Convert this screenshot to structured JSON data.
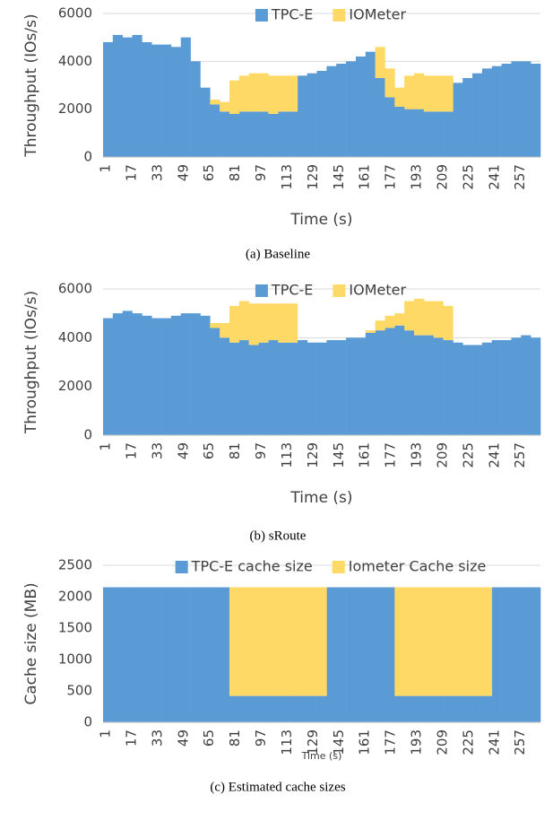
{
  "chart_data": [
    {
      "type": "bar",
      "stacked": true,
      "y_label": "Throughput (IOs/s)",
      "x_label": "Time (s)",
      "caption": "(a)  Baseline",
      "legend": "top",
      "grid": true,
      "x": [
        1,
        7,
        13,
        19,
        25,
        31,
        37,
        43,
        49,
        55,
        61,
        67,
        73,
        79,
        85,
        91,
        97,
        103,
        109,
        115,
        121,
        127,
        133,
        139,
        145,
        151,
        157,
        163,
        169,
        175,
        181,
        187,
        193,
        199,
        205,
        211,
        217,
        223,
        229,
        235,
        241,
        247,
        253,
        259,
        265
      ],
      "xlim": [
        1,
        271
      ],
      "xticks": [
        1,
        17,
        33,
        49,
        65,
        81,
        97,
        113,
        129,
        145,
        161,
        177,
        193,
        209,
        225,
        241,
        257
      ],
      "ylim": [
        0,
        6000
      ],
      "yticks": [
        0,
        2000,
        4000,
        6000
      ],
      "series": [
        {
          "name": "TPC-E",
          "color": "#5b9bd5",
          "values": [
            4800,
            5100,
            5000,
            5100,
            4800,
            4700,
            4700,
            4600,
            5000,
            4000,
            2900,
            2200,
            1900,
            1800,
            1900,
            1900,
            1900,
            1800,
            1900,
            1900,
            3400,
            3500,
            3600,
            3800,
            3900,
            4000,
            4200,
            4400,
            3300,
            2500,
            2100,
            2000,
            2000,
            1900,
            1900,
            1900,
            3100,
            3300,
            3500,
            3700,
            3800,
            3900,
            4000,
            4000,
            3900
          ]
        },
        {
          "name": "IOMeter",
          "color": "#ffd966",
          "values": [
            0,
            0,
            0,
            0,
            0,
            0,
            0,
            0,
            0,
            0,
            0,
            200,
            400,
            1400,
            1500,
            1600,
            1600,
            1600,
            1500,
            1500,
            0,
            0,
            0,
            0,
            0,
            0,
            0,
            0,
            1300,
            1200,
            800,
            1400,
            1500,
            1500,
            1500,
            1500,
            0,
            0,
            0,
            0,
            0,
            0,
            0,
            0,
            0
          ]
        }
      ]
    },
    {
      "type": "bar",
      "stacked": true,
      "y_label": "Throughput (IOs/s)",
      "x_label": "Time (s)",
      "caption": "(b)  sRoute",
      "legend": "top",
      "grid": true,
      "x": [
        1,
        7,
        13,
        19,
        25,
        31,
        37,
        43,
        49,
        55,
        61,
        67,
        73,
        79,
        85,
        91,
        97,
        103,
        109,
        115,
        121,
        127,
        133,
        139,
        145,
        151,
        157,
        163,
        169,
        175,
        181,
        187,
        193,
        199,
        205,
        211,
        217,
        223,
        229,
        235,
        241,
        247,
        253,
        259,
        265
      ],
      "xlim": [
        1,
        271
      ],
      "xticks": [
        1,
        17,
        33,
        49,
        65,
        81,
        97,
        113,
        129,
        145,
        161,
        177,
        193,
        209,
        225,
        241,
        257
      ],
      "ylim": [
        0,
        6000
      ],
      "yticks": [
        0,
        2000,
        4000,
        6000
      ],
      "series": [
        {
          "name": "TPC-E",
          "color": "#5b9bd5",
          "values": [
            4800,
            5000,
            5100,
            5000,
            4900,
            4800,
            4800,
            4900,
            5000,
            5000,
            4900,
            4400,
            4000,
            3800,
            3900,
            3700,
            3800,
            3900,
            3800,
            3800,
            3900,
            3800,
            3800,
            3900,
            3900,
            4000,
            4000,
            4200,
            4300,
            4400,
            4500,
            4300,
            4100,
            4100,
            4000,
            3900,
            3800,
            3700,
            3700,
            3800,
            3900,
            3900,
            4000,
            4100,
            4000
          ]
        },
        {
          "name": "IOMeter",
          "color": "#ffd966",
          "values": [
            0,
            0,
            0,
            0,
            0,
            0,
            0,
            0,
            0,
            0,
            0,
            200,
            600,
            1500,
            1600,
            1700,
            1600,
            1500,
            1600,
            1600,
            0,
            0,
            0,
            0,
            0,
            0,
            0,
            100,
            400,
            500,
            500,
            1200,
            1500,
            1400,
            1500,
            1400,
            0,
            0,
            0,
            0,
            0,
            0,
            0,
            0,
            0
          ]
        }
      ]
    },
    {
      "type": "bar",
      "stacked": true,
      "y_label": "Cache size (MB)",
      "x_label": "Time (s)",
      "caption": "(c)  Estimated cache sizes",
      "legend": "top",
      "grid": true,
      "x": [
        1,
        7,
        13,
        19,
        25,
        31,
        37,
        43,
        49,
        55,
        61,
        67,
        73,
        79,
        85,
        91,
        97,
        103,
        109,
        115,
        121,
        127,
        133,
        139,
        145,
        151,
        157,
        163,
        169,
        175,
        181,
        187,
        193,
        199,
        205,
        211,
        217,
        223,
        229,
        235,
        241,
        247,
        253,
        259,
        265
      ],
      "xlim": [
        1,
        271
      ],
      "xticks": [
        1,
        17,
        33,
        49,
        65,
        81,
        97,
        113,
        129,
        145,
        161,
        177,
        193,
        209,
        225,
        241,
        257
      ],
      "ylim": [
        0,
        2500
      ],
      "yticks": [
        0,
        500,
        1000,
        1500,
        2000,
        2500
      ],
      "series": [
        {
          "name": "TPC-E cache size",
          "color": "#5b9bd5",
          "values": [
            2150,
            2150,
            2150,
            2150,
            2150,
            2150,
            2150,
            2150,
            2150,
            2150,
            2150,
            2150,
            2150,
            420,
            420,
            420,
            420,
            420,
            420,
            420,
            420,
            420,
            420,
            2150,
            2150,
            2150,
            2150,
            2150,
            2150,
            2150,
            420,
            420,
            420,
            420,
            420,
            420,
            420,
            420,
            420,
            420,
            2150,
            2150,
            2150,
            2150,
            2150
          ]
        },
        {
          "name": "Iometer Cache size",
          "color": "#ffd966",
          "values": [
            0,
            0,
            0,
            0,
            0,
            0,
            0,
            0,
            0,
            0,
            0,
            0,
            0,
            1730,
            1730,
            1730,
            1730,
            1730,
            1730,
            1730,
            1730,
            1730,
            1730,
            0,
            0,
            0,
            0,
            0,
            0,
            0,
            1730,
            1730,
            1730,
            1730,
            1730,
            1730,
            1730,
            1730,
            1730,
            1730,
            0,
            0,
            0,
            0,
            0
          ]
        }
      ]
    }
  ]
}
